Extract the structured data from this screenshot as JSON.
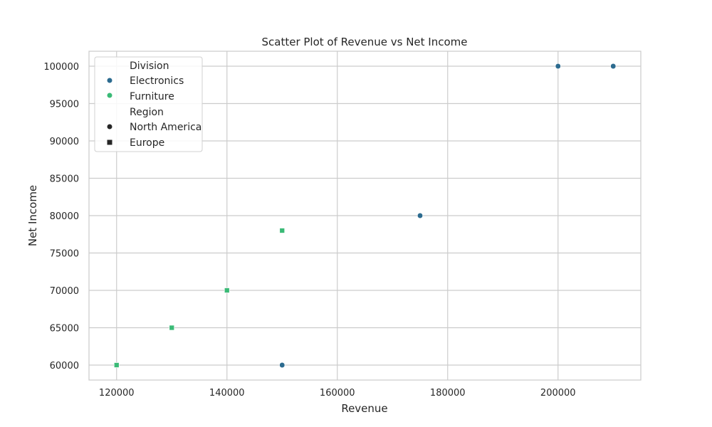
{
  "chart_data": {
    "type": "scatter",
    "title": "Scatter Plot of Revenue vs Net Income",
    "xlabel": "Revenue",
    "ylabel": "Net Income",
    "xlim": [
      115000,
      215000
    ],
    "ylim": [
      58000,
      102000
    ],
    "x_ticks": [
      120000,
      140000,
      160000,
      180000,
      200000
    ],
    "y_ticks": [
      60000,
      65000,
      70000,
      75000,
      80000,
      85000,
      90000,
      95000,
      100000
    ],
    "grid": true,
    "legend": {
      "placement": "top-left",
      "hue_title": "Division",
      "style_title": "Region",
      "hue_entries": [
        {
          "label": "Electronics",
          "color": "#2c6b8f"
        },
        {
          "label": "Furniture",
          "color": "#3aba76"
        }
      ],
      "style_entries": [
        {
          "label": "North America",
          "marker": "circle"
        },
        {
          "label": "Europe",
          "marker": "square"
        }
      ]
    },
    "colors": {
      "Electronics": "#2c6b8f",
      "Furniture": "#3aba76",
      "grid": "#cccccc",
      "text": "#262626"
    },
    "points": [
      {
        "x": 120000,
        "y": 60000,
        "division": "Furniture",
        "region": "Europe"
      },
      {
        "x": 130000,
        "y": 65000,
        "division": "Furniture",
        "region": "Europe"
      },
      {
        "x": 140000,
        "y": 70000,
        "division": "Furniture",
        "region": "Europe"
      },
      {
        "x": 150000,
        "y": 78000,
        "division": "Furniture",
        "region": "Europe"
      },
      {
        "x": 150000,
        "y": 60000,
        "division": "Electronics",
        "region": "North America"
      },
      {
        "x": 175000,
        "y": 80000,
        "division": "Electronics",
        "region": "North America"
      },
      {
        "x": 200000,
        "y": 100000,
        "division": "Electronics",
        "region": "North America"
      },
      {
        "x": 210000,
        "y": 100000,
        "division": "Electronics",
        "region": "North America"
      }
    ]
  }
}
